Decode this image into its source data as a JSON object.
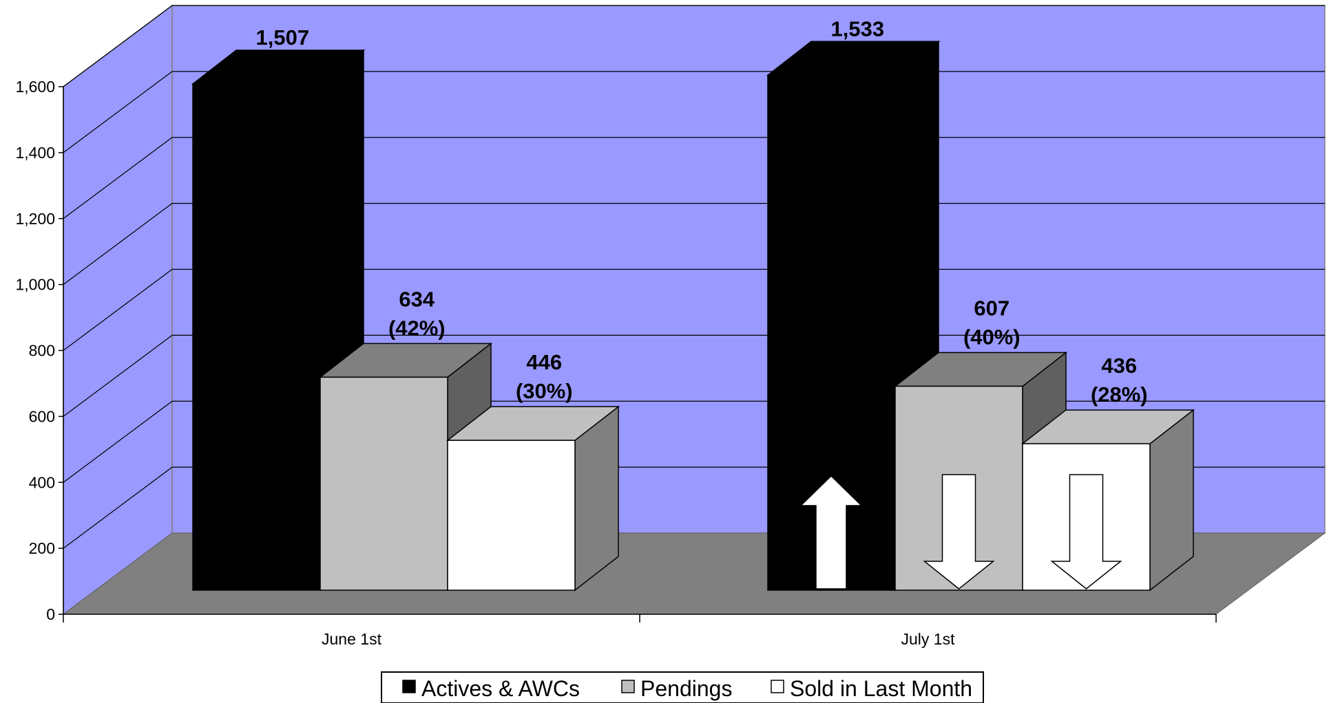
{
  "chart_data": {
    "type": "bar",
    "style": "3d-clustered-column",
    "categories": [
      "June 1st",
      "July 1st"
    ],
    "series": [
      {
        "name": "Actives & AWCs",
        "values": [
          1507,
          1533
        ],
        "color": "#000000",
        "side_color": "#000000",
        "top_color": "#000000"
      },
      {
        "name": "Pendings",
        "values": [
          634,
          607
        ],
        "color": "#c0c0c0",
        "side_color": "#606060",
        "top_color": "#808080"
      },
      {
        "name": "Sold in Last Month",
        "values": [
          446,
          436
        ],
        "color": "#ffffff",
        "side_color": "#808080",
        "top_color": "#c0c0c0"
      }
    ],
    "data_labels": [
      [
        "1,507",
        "1,533"
      ],
      [
        "634",
        "607"
      ],
      [
        "446",
        "436"
      ]
    ],
    "percent_labels": [
      [
        "",
        ""
      ],
      [
        "(42%)",
        "(40%)"
      ],
      [
        "(30%)",
        "(28%)"
      ]
    ],
    "trend_arrows": [
      [
        "",
        "up"
      ],
      [
        "",
        "down"
      ],
      [
        "",
        "down"
      ]
    ],
    "y_ticks": [
      "0",
      "200",
      "400",
      "600",
      "800",
      "1,000",
      "1,200",
      "1,400",
      "1,600"
    ],
    "y_tick_values": [
      0,
      200,
      400,
      600,
      800,
      1000,
      1200,
      1400,
      1600
    ],
    "ylim": [
      0,
      1600
    ],
    "title": "",
    "xlabel": "",
    "ylabel": "",
    "grid": true,
    "legend_position": "bottom",
    "colors": {
      "back_wall": "#9999ff",
      "left_wall": "#9999ff",
      "floor": "#808080",
      "gridline": "#000000"
    }
  }
}
